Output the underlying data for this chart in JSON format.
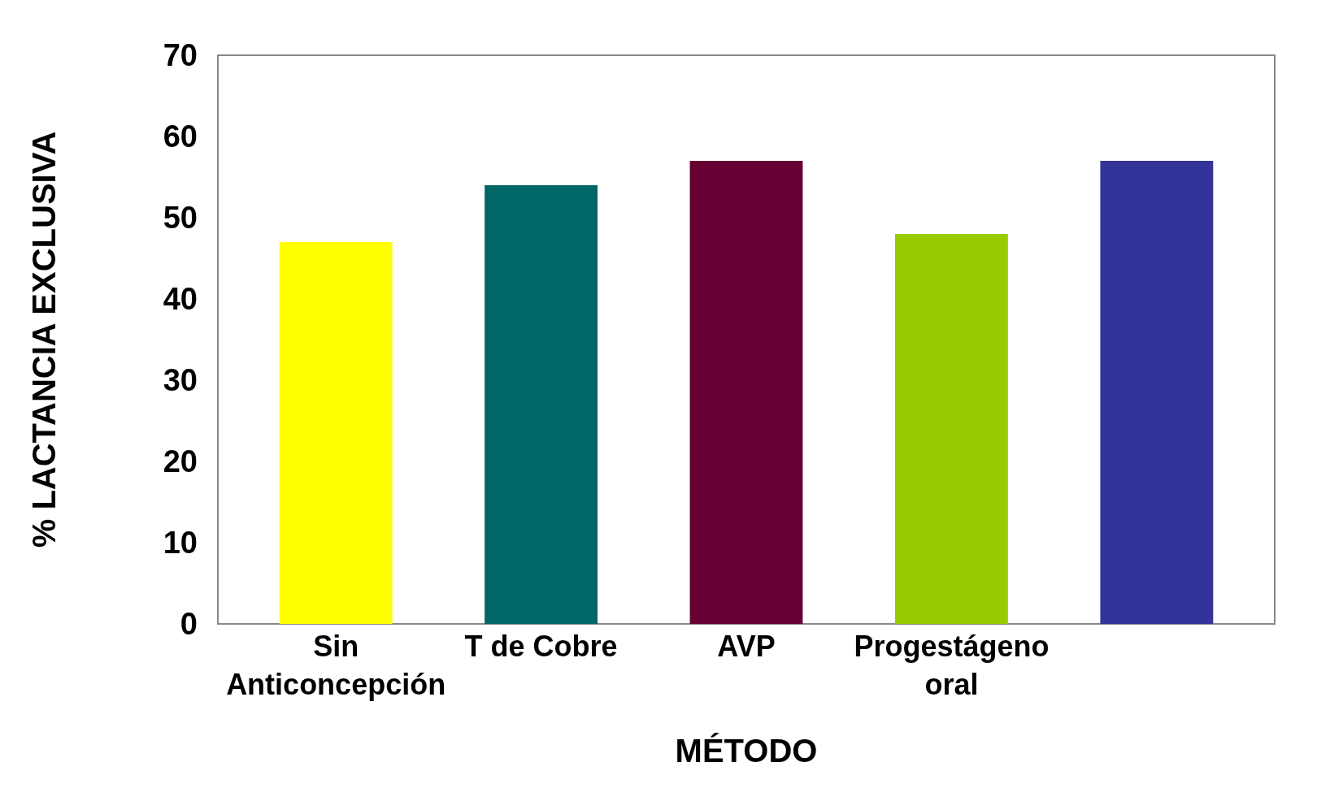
{
  "chart_data": {
    "type": "bar",
    "xlabel": "MÉTODO",
    "ylabel": "% LACTANCIA EXCLUSIVA",
    "categories": [
      "Sin Anticoncepción",
      "T de Cobre",
      "AVP",
      "Progestágeno oral",
      null
    ],
    "values": [
      47,
      54,
      57,
      48,
      57
    ],
    "colors": [
      "#ffff00",
      "#006666",
      "#660033",
      "#99cc00",
      "#333399"
    ],
    "ylim": [
      0,
      70
    ],
    "yticks": [
      0,
      10,
      20,
      30,
      40,
      50,
      60,
      70
    ],
    "grid": false
  }
}
